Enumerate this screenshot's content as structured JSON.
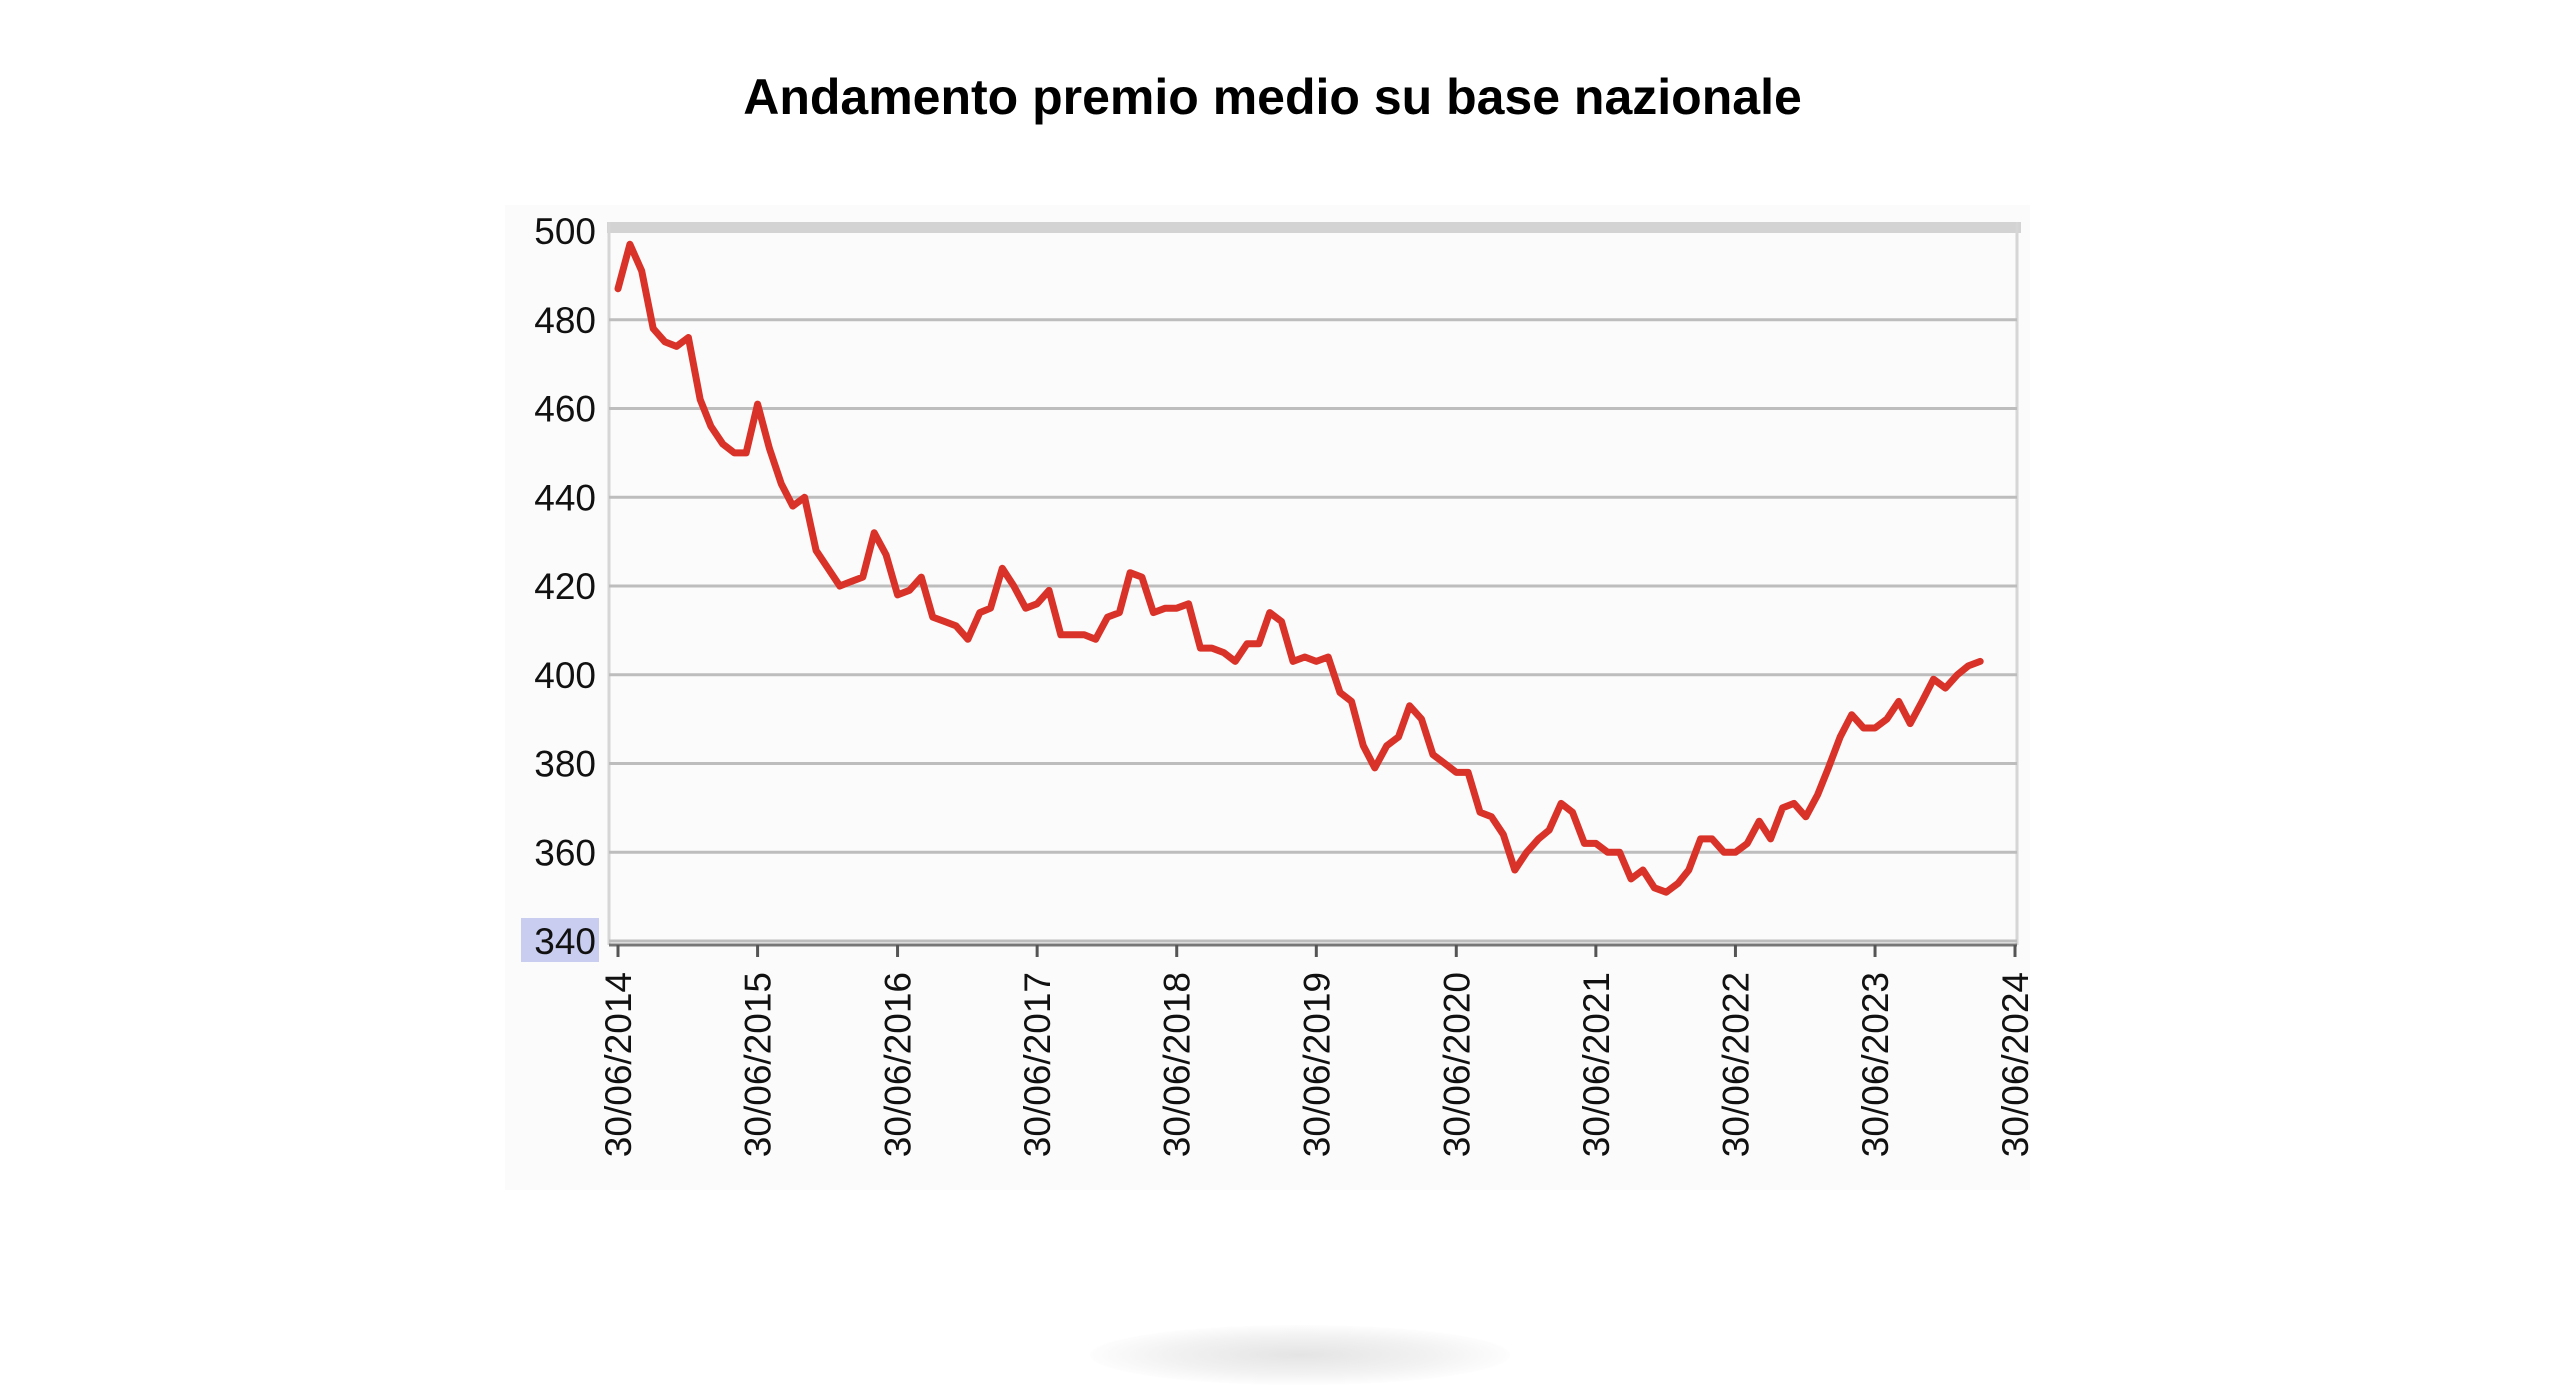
{
  "chart_data": {
    "type": "line",
    "title": "Andamento premio medio su base nazionale",
    "xlabel": "",
    "ylabel": "",
    "ylim": [
      340,
      500
    ],
    "yticks": [
      500,
      480,
      460,
      440,
      420,
      400,
      380,
      360,
      340
    ],
    "grid": true,
    "legend": "none",
    "x_ticks": [
      "30/06/2014",
      "30/06/2015",
      "30/06/2016",
      "30/06/2017",
      "30/06/2018",
      "30/06/2019",
      "30/06/2020",
      "30/06/2021",
      "30/06/2022",
      "30/06/2023",
      "30/06/2024"
    ],
    "colors": {
      "line": "#d93228",
      "grid": "#bdbdbd",
      "highlight": "#c9cdef",
      "frame": "#d6d6d6"
    },
    "series": [
      {
        "values": [
          [
            "2014-06-30",
            487
          ],
          [
            "2014-07-31",
            497
          ],
          [
            "2014-08-31",
            491
          ],
          [
            "2014-09-30",
            478
          ],
          [
            "2014-10-31",
            475
          ],
          [
            "2014-11-30",
            474
          ],
          [
            "2014-12-31",
            476
          ],
          [
            "2015-01-31",
            462
          ],
          [
            "2015-02-28",
            456
          ],
          [
            "2015-03-31",
            452
          ],
          [
            "2015-04-30",
            450
          ],
          [
            "2015-05-31",
            450
          ],
          [
            "2015-06-30",
            461
          ],
          [
            "2015-07-31",
            451
          ],
          [
            "2015-08-31",
            443
          ],
          [
            "2015-09-30",
            438
          ],
          [
            "2015-10-31",
            440
          ],
          [
            "2015-11-30",
            428
          ],
          [
            "2015-12-31",
            424
          ],
          [
            "2016-01-31",
            420
          ],
          [
            "2016-02-29",
            421
          ],
          [
            "2016-03-31",
            422
          ],
          [
            "2016-04-30",
            432
          ],
          [
            "2016-05-31",
            427
          ],
          [
            "2016-06-30",
            418
          ],
          [
            "2016-07-31",
            419
          ],
          [
            "2016-08-31",
            422
          ],
          [
            "2016-09-30",
            413
          ],
          [
            "2016-10-31",
            412
          ],
          [
            "2016-11-30",
            411
          ],
          [
            "2016-12-31",
            408
          ],
          [
            "2017-01-31",
            414
          ],
          [
            "2017-02-28",
            415
          ],
          [
            "2017-03-31",
            424
          ],
          [
            "2017-04-30",
            420
          ],
          [
            "2017-05-31",
            415
          ],
          [
            "2017-06-30",
            416
          ],
          [
            "2017-07-31",
            419
          ],
          [
            "2017-08-31",
            409
          ],
          [
            "2017-09-30",
            409
          ],
          [
            "2017-10-31",
            409
          ],
          [
            "2017-11-30",
            408
          ],
          [
            "2017-12-31",
            413
          ],
          [
            "2018-01-31",
            414
          ],
          [
            "2018-02-28",
            423
          ],
          [
            "2018-03-31",
            422
          ],
          [
            "2018-04-30",
            414
          ],
          [
            "2018-05-31",
            415
          ],
          [
            "2018-06-30",
            415
          ],
          [
            "2018-07-31",
            416
          ],
          [
            "2018-08-31",
            406
          ],
          [
            "2018-09-30",
            406
          ],
          [
            "2018-10-31",
            405
          ],
          [
            "2018-11-30",
            403
          ],
          [
            "2018-12-31",
            407
          ],
          [
            "2019-01-31",
            407
          ],
          [
            "2019-02-28",
            414
          ],
          [
            "2019-03-31",
            412
          ],
          [
            "2019-04-30",
            403
          ],
          [
            "2019-05-31",
            404
          ],
          [
            "2019-06-30",
            403
          ],
          [
            "2019-07-31",
            404
          ],
          [
            "2019-08-31",
            396
          ],
          [
            "2019-09-30",
            394
          ],
          [
            "2019-10-31",
            384
          ],
          [
            "2019-11-30",
            379
          ],
          [
            "2019-12-31",
            384
          ],
          [
            "2020-01-31",
            386
          ],
          [
            "2020-02-29",
            393
          ],
          [
            "2020-03-31",
            390
          ],
          [
            "2020-04-30",
            382
          ],
          [
            "2020-05-31",
            380
          ],
          [
            "2020-06-30",
            378
          ],
          [
            "2020-07-31",
            378
          ],
          [
            "2020-08-31",
            369
          ],
          [
            "2020-09-30",
            368
          ],
          [
            "2020-10-31",
            364
          ],
          [
            "2020-11-30",
            356
          ],
          [
            "2020-12-31",
            360
          ],
          [
            "2021-01-31",
            363
          ],
          [
            "2021-02-28",
            365
          ],
          [
            "2021-03-31",
            371
          ],
          [
            "2021-04-30",
            369
          ],
          [
            "2021-05-31",
            362
          ],
          [
            "2021-06-30",
            362
          ],
          [
            "2021-07-31",
            360
          ],
          [
            "2021-08-31",
            360
          ],
          [
            "2021-09-30",
            354
          ],
          [
            "2021-10-31",
            356
          ],
          [
            "2021-11-30",
            352
          ],
          [
            "2021-12-31",
            351
          ],
          [
            "2022-01-31",
            353
          ],
          [
            "2022-02-28",
            356
          ],
          [
            "2022-03-31",
            363
          ],
          [
            "2022-04-30",
            363
          ],
          [
            "2022-05-31",
            360
          ],
          [
            "2022-06-30",
            360
          ],
          [
            "2022-07-31",
            362
          ],
          [
            "2022-08-31",
            367
          ],
          [
            "2022-09-30",
            363
          ],
          [
            "2022-10-31",
            370
          ],
          [
            "2022-11-30",
            371
          ],
          [
            "2022-12-31",
            368
          ],
          [
            "2023-01-31",
            373
          ],
          [
            "2023-02-28",
            379
          ],
          [
            "2023-03-31",
            386
          ],
          [
            "2023-04-30",
            391
          ],
          [
            "2023-05-31",
            388
          ],
          [
            "2023-06-30",
            388
          ],
          [
            "2023-07-31",
            390
          ],
          [
            "2023-08-31",
            394
          ],
          [
            "2023-09-30",
            389
          ],
          [
            "2023-10-31",
            394
          ],
          [
            "2023-11-30",
            399
          ],
          [
            "2023-12-31",
            397
          ],
          [
            "2024-01-31",
            400
          ],
          [
            "2024-02-29",
            402
          ],
          [
            "2024-03-31",
            403
          ]
        ]
      }
    ]
  }
}
